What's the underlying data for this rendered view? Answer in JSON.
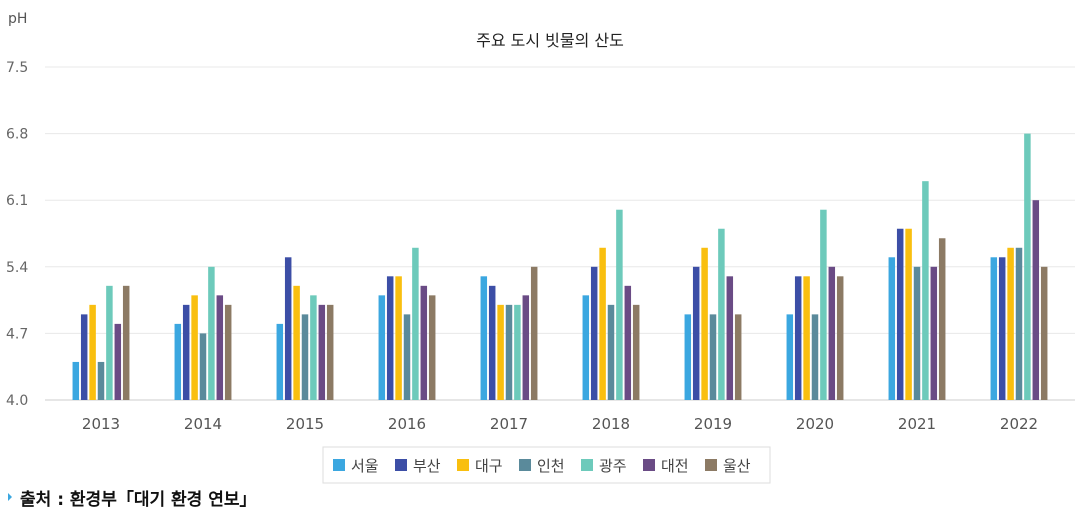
{
  "chart_data": {
    "type": "bar",
    "title": "주요 도시 빗물의 산도",
    "ylabel": "pH",
    "xlabel": "",
    "ylim": [
      4.0,
      7.5
    ],
    "yticks": [
      "4.0",
      "4.7",
      "5.4",
      "6.1",
      "6.8",
      "7.5"
    ],
    "categories": [
      "2013",
      "2014",
      "2015",
      "2016",
      "2017",
      "2018",
      "2019",
      "2020",
      "2021",
      "2022"
    ],
    "grid": true,
    "legend_position": "bottom",
    "series": [
      {
        "name": "서울",
        "color": "#3BA7E0",
        "values": [
          4.4,
          4.8,
          4.8,
          5.1,
          5.3,
          5.1,
          4.9,
          4.9,
          5.5,
          5.5
        ]
      },
      {
        "name": "부산",
        "color": "#3C4EA6",
        "values": [
          4.9,
          5.0,
          5.5,
          5.3,
          5.2,
          5.4,
          5.4,
          5.3,
          5.8,
          5.5
        ]
      },
      {
        "name": "대구",
        "color": "#F9BF0F",
        "values": [
          5.0,
          5.1,
          5.2,
          5.3,
          5.0,
          5.6,
          5.6,
          5.3,
          5.8,
          5.6
        ]
      },
      {
        "name": "인천",
        "color": "#5A8A9B",
        "values": [
          4.4,
          4.7,
          4.9,
          4.9,
          5.0,
          5.0,
          4.9,
          4.9,
          5.4,
          5.6
        ]
      },
      {
        "name": "광주",
        "color": "#6DCABB",
        "values": [
          5.2,
          5.4,
          5.1,
          5.6,
          5.0,
          6.0,
          5.8,
          6.0,
          6.3,
          6.8
        ]
      },
      {
        "name": "대전",
        "color": "#6A4B85",
        "values": [
          4.8,
          5.1,
          5.0,
          5.2,
          5.1,
          5.2,
          5.3,
          5.4,
          5.4,
          6.1
        ]
      },
      {
        "name": "울산",
        "color": "#8C7A64",
        "values": [
          5.2,
          5.0,
          5.0,
          5.1,
          5.4,
          5.0,
          4.9,
          5.3,
          5.7,
          5.4
        ]
      }
    ]
  },
  "source": {
    "text": "출처 : 환경부「대기 환경 연보」",
    "marker_color": "#3BA7E0"
  },
  "colors": {
    "grid": "#e8e8e8",
    "axis": "#cccccc",
    "legend_border": "#dddddd"
  }
}
